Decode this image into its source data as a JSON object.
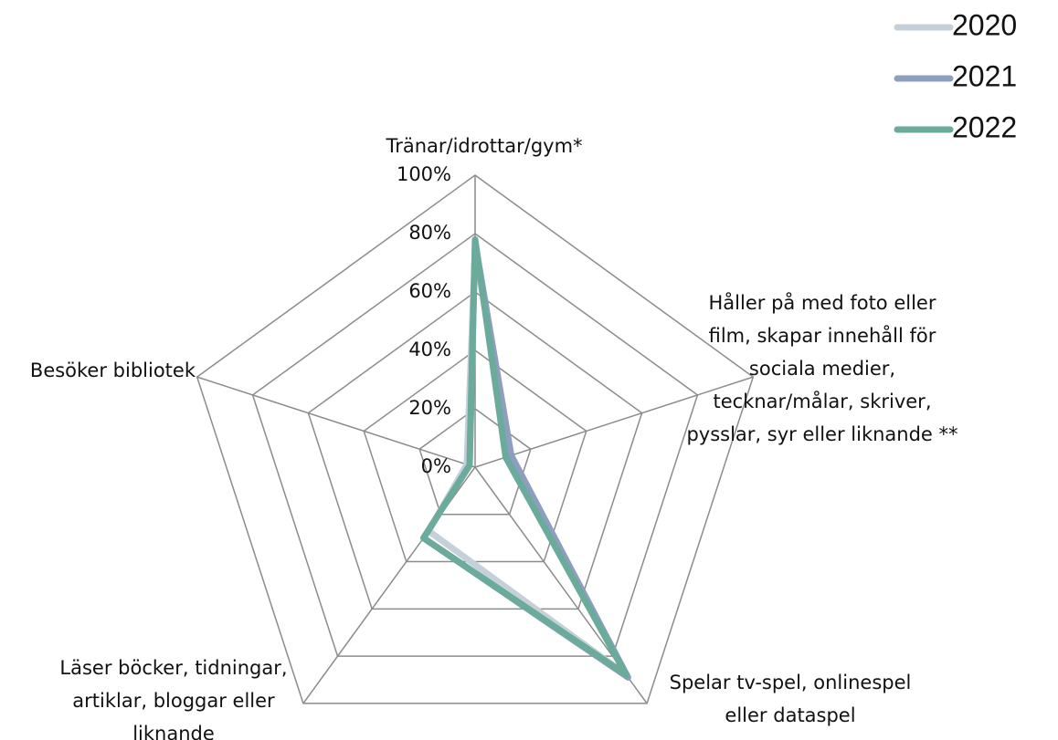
{
  "chart_data": {
    "type": "radar",
    "categories": [
      "Tränar/idrottar/gym*",
      "Håller på med foto eller\nfilm, skapar innehåll för\nsociala medier,\ntecknar/målar, skriver,\npysslar, syr eller liknande **",
      "Spelar tv-spel, onlinespel\neller dataspel",
      "Läser böcker, tidningar,\nartiklar, bloggar eller\nliknande",
      "Besöker bibliotek"
    ],
    "series": [
      {
        "name": "2020",
        "color": "#c5d0d9",
        "values": [
          75,
          12,
          88,
          27,
          3
        ]
      },
      {
        "name": "2021",
        "color": "#8e9ebf",
        "values": [
          77,
          13,
          89,
          30,
          2
        ]
      },
      {
        "name": "2022",
        "color": "#6aab9c",
        "values": [
          78,
          11,
          88,
          30,
          2
        ]
      }
    ],
    "ylim": [
      0,
      100
    ],
    "yticks": [
      {
        "value": 0,
        "label": "0%"
      },
      {
        "value": 20,
        "label": "20%"
      },
      {
        "value": 40,
        "label": "40%"
      },
      {
        "value": 60,
        "label": "60%"
      },
      {
        "value": 80,
        "label": "80%"
      },
      {
        "value": 100,
        "label": "100%"
      }
    ],
    "grid": true,
    "legend": "top-right"
  }
}
